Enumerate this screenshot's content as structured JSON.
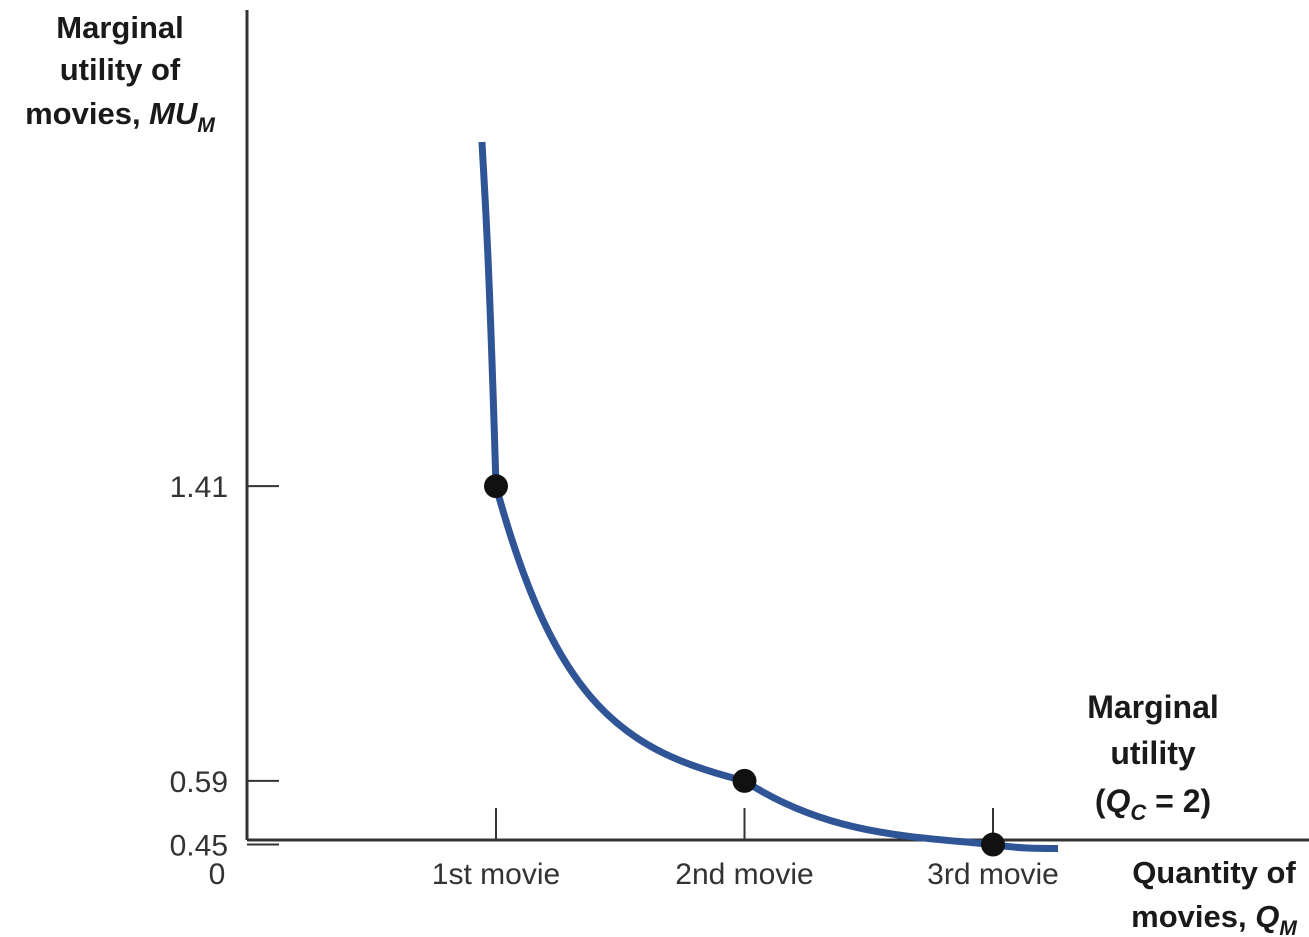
{
  "chart_data": {
    "type": "line",
    "categories": [
      "1st movie",
      "2nd movie",
      "3rd movie"
    ],
    "origin_label": "0",
    "y_ticks": [
      {
        "value": 1.41,
        "label": "1.41"
      },
      {
        "value": 0.59,
        "label": "0.59"
      },
      {
        "value": 0.45,
        "label": "0.45"
      }
    ],
    "ylim": [
      0,
      1.65
    ],
    "ylabel": {
      "line1": "Marginal",
      "line2": "utility of",
      "line3_prefix": "movies, ",
      "symbol": "MU",
      "subscript": "M"
    },
    "xlabel": {
      "line1": "Quantity of",
      "line2_prefix": "movies, ",
      "symbol": "Q",
      "subscript": "M"
    },
    "series": [
      {
        "label": {
          "line1": "Marginal",
          "line2": "utility",
          "line3_open": "(",
          "symbol": "Q",
          "subscript": "C",
          "line3_rest": " = 2)"
        },
        "points": [
          {
            "category": "1st movie",
            "value": 1.41
          },
          {
            "category": "2nd movie",
            "value": 0.59
          },
          {
            "category": "3rd movie",
            "value": 0.45
          }
        ]
      }
    ],
    "colors": {
      "line": "#2f5597",
      "marker": "#111111",
      "axis": "#333333"
    },
    "grid": false
  }
}
